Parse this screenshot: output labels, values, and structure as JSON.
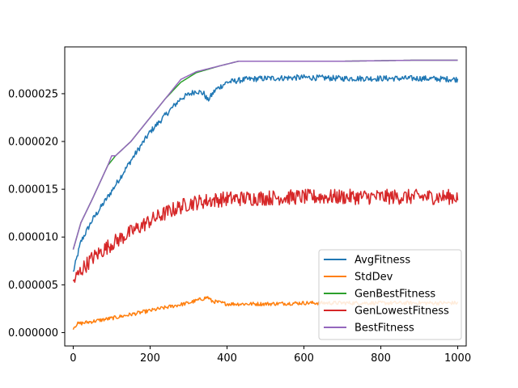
{
  "chart_data": {
    "type": "line",
    "title": "",
    "xlabel": "",
    "ylabel": "",
    "xlim": [
      -22,
      1022
    ],
    "ylim": [
      -1.4e-06,
      2.99e-05
    ],
    "xticks": [
      {
        "value": 0,
        "label": "0"
      },
      {
        "value": 200,
        "label": "200"
      },
      {
        "value": 400,
        "label": "400"
      },
      {
        "value": 600,
        "label": "600"
      },
      {
        "value": 800,
        "label": "800"
      },
      {
        "value": 1000,
        "label": "1000"
      }
    ],
    "yticks": [
      {
        "value": 0.0,
        "label": "0.000000"
      },
      {
        "value": 5e-06,
        "label": "0.000005"
      },
      {
        "value": 1e-05,
        "label": "0.000010"
      },
      {
        "value": 1.5e-05,
        "label": "0.000015"
      },
      {
        "value": 2e-05,
        "label": "0.000020"
      },
      {
        "value": 2.5e-05,
        "label": "0.000025"
      }
    ],
    "grid": false,
    "legend_position": "lower-right",
    "series": [
      {
        "name": "AvgFitness",
        "color": "#1f77b4",
        "noise": 3e-07,
        "x": [
          0,
          20,
          50,
          100,
          150,
          200,
          250,
          280,
          320,
          340,
          350,
          370,
          400,
          450,
          500,
          600,
          700,
          800,
          900,
          1000
        ],
        "y": [
          6.3e-06,
          9.5e-06,
          1.18e-05,
          1.48e-05,
          1.8e-05,
          2.1e-05,
          2.32e-05,
          2.45e-05,
          2.53e-05,
          2.5e-05,
          2.43e-05,
          2.54e-05,
          2.62e-05,
          2.65e-05,
          2.66e-05,
          2.67e-05,
          2.66e-05,
          2.66e-05,
          2.66e-05,
          2.65e-05
        ]
      },
      {
        "name": "StdDev",
        "color": "#ff7f0e",
        "noise": 2e-07,
        "x": [
          0,
          10,
          100,
          200,
          300,
          350,
          360,
          400,
          500,
          600,
          700,
          800,
          900,
          1000
        ],
        "y": [
          5e-07,
          9e-07,
          1.5e-06,
          2.3e-06,
          3.1e-06,
          3.7e-06,
          3.3e-06,
          3e-06,
          3e-06,
          3.1e-06,
          3.1e-06,
          3.1e-06,
          3.1e-06,
          3.1e-06
        ]
      },
      {
        "name": "GenBestFitness",
        "color": "#2ca02c",
        "noise": 0.0,
        "x": [
          0,
          20,
          50,
          90,
          100,
          110,
          150,
          200,
          240,
          280,
          320,
          380,
          430,
          500,
          700,
          880,
          1000
        ],
        "y": [
          8.7e-06,
          1.15e-05,
          1.4e-05,
          1.75e-05,
          1.8e-05,
          1.85e-05,
          2e-05,
          2.25e-05,
          2.45e-05,
          2.62e-05,
          2.72e-05,
          2.79e-05,
          2.84e-05,
          2.84e-05,
          2.84e-05,
          2.85e-05,
          2.85e-05
        ]
      },
      {
        "name": "GenLowestFitness",
        "color": "#d62728",
        "noise": 8e-07,
        "x": [
          0,
          20,
          50,
          100,
          150,
          200,
          250,
          300,
          350,
          400,
          500,
          600,
          700,
          800,
          900,
          1000
        ],
        "y": [
          5.3e-06,
          6.5e-06,
          7.8e-06,
          9.3e-06,
          1.05e-05,
          1.17e-05,
          1.27e-05,
          1.35e-05,
          1.38e-05,
          1.4e-05,
          1.41e-05,
          1.42e-05,
          1.42e-05,
          1.42e-05,
          1.42e-05,
          1.42e-05
        ]
      },
      {
        "name": "BestFitness",
        "color": "#9467bd",
        "noise": 0.0,
        "x": [
          0,
          20,
          50,
          90,
          100,
          110,
          150,
          200,
          240,
          280,
          320,
          380,
          430,
          500,
          700,
          880,
          1000
        ],
        "y": [
          8.7e-06,
          1.15e-05,
          1.4e-05,
          1.75e-05,
          1.85e-05,
          1.85e-05,
          2e-05,
          2.25e-05,
          2.45e-05,
          2.65e-05,
          2.73e-05,
          2.79e-05,
          2.84e-05,
          2.84e-05,
          2.84e-05,
          2.85e-05,
          2.85e-05
        ]
      }
    ]
  }
}
